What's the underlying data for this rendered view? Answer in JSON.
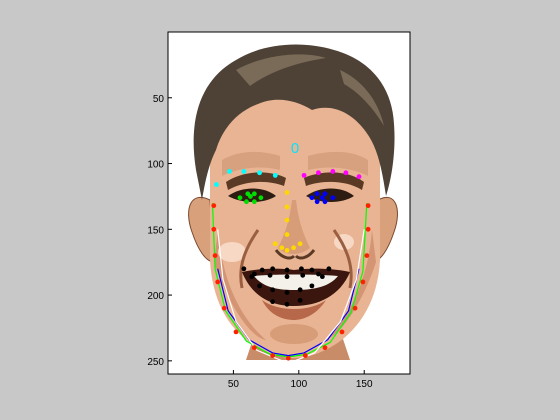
{
  "figure": {
    "background": "#c8c8c8",
    "axes_background": "#ffffff",
    "axis_color": "#000000",
    "ticks": {
      "x": [
        {
          "value": 50,
          "label": "50"
        },
        {
          "value": 100,
          "label": "100"
        },
        {
          "value": 150,
          "label": "150"
        }
      ],
      "y": [
        {
          "value": 50,
          "label": "50"
        },
        {
          "value": 100,
          "label": "100"
        },
        {
          "value": 150,
          "label": "150"
        },
        {
          "value": 200,
          "label": "200"
        },
        {
          "value": 250,
          "label": "250"
        }
      ]
    },
    "xlim": [
      0,
      185
    ],
    "ylim": [
      0,
      260
    ],
    "y_reversed": true
  },
  "annotation": {
    "text": "0",
    "color": "#00e5ff"
  },
  "image": {
    "subject": "cartoon face of a smiling man",
    "skin": "#e9b493",
    "skin_shadow": "#b9754f",
    "hair": "#4e4236",
    "hair_highlight": "#7a6a58"
  },
  "landmarks": {
    "eyebrow_right": {
      "color": "#00ffff",
      "points": [
        [
          37,
          116
        ],
        [
          47,
          106
        ],
        [
          58,
          106
        ],
        [
          70,
          107
        ],
        [
          82,
          109
        ]
      ]
    },
    "eyebrow_left": {
      "color": "#ff00ff",
      "points": [
        [
          104,
          109
        ],
        [
          115,
          107
        ],
        [
          126,
          106
        ],
        [
          136,
          107
        ],
        [
          146,
          110
        ]
      ]
    },
    "eye_right": {
      "color": "#00dd00",
      "points": [
        [
          55,
          126
        ],
        [
          61,
          123
        ],
        [
          66,
          123
        ],
        [
          71,
          126
        ],
        [
          66,
          129
        ],
        [
          60,
          129
        ],
        [
          63,
          125
        ]
      ]
    },
    "eye_left": {
      "color": "#0000ff",
      "points": [
        [
          110,
          126
        ],
        [
          114,
          123
        ],
        [
          120,
          123
        ],
        [
          126,
          126
        ],
        [
          120,
          129
        ],
        [
          114,
          129
        ],
        [
          118,
          126
        ]
      ]
    },
    "nose": {
      "color": "#ffd700",
      "points": [
        [
          91,
          122
        ],
        [
          91,
          133
        ],
        [
          91,
          143
        ],
        [
          91,
          154
        ],
        [
          82,
          161
        ],
        [
          87,
          164
        ],
        [
          91,
          166
        ],
        [
          96,
          164
        ],
        [
          101,
          161
        ]
      ]
    },
    "mouth": {
      "color": "#000000",
      "points": [
        [
          58,
          180
        ],
        [
          64,
          186
        ],
        [
          72,
          181
        ],
        [
          80,
          180
        ],
        [
          91,
          181
        ],
        [
          102,
          180
        ],
        [
          110,
          181
        ],
        [
          118,
          186
        ],
        [
          123,
          180
        ],
        [
          66,
          184
        ],
        [
          78,
          185
        ],
        [
          91,
          186
        ],
        [
          103,
          185
        ],
        [
          115,
          184
        ],
        [
          70,
          193
        ],
        [
          80,
          196
        ],
        [
          91,
          198
        ],
        [
          101,
          196
        ],
        [
          110,
          193
        ],
        [
          80,
          205
        ],
        [
          91,
          207
        ],
        [
          101,
          204
        ]
      ]
    },
    "jaw": {
      "color": "#ff2200",
      "points": [
        [
          35,
          132
        ],
        [
          35,
          150
        ],
        [
          36,
          170
        ],
        [
          38,
          190
        ],
        [
          43,
          210
        ],
        [
          52,
          228
        ],
        [
          66,
          240
        ],
        [
          80,
          246
        ],
        [
          92,
          248
        ],
        [
          105,
          246
        ],
        [
          120,
          240
        ],
        [
          133,
          228
        ],
        [
          143,
          210
        ],
        [
          149,
          190
        ],
        [
          152,
          170
        ],
        [
          153,
          150
        ],
        [
          153,
          132
        ]
      ]
    }
  },
  "contours": [
    {
      "color": "#00ff00",
      "points": [
        [
          34,
          130
        ],
        [
          36,
          180
        ],
        [
          44,
          212
        ],
        [
          60,
          235
        ],
        [
          78,
          245
        ],
        [
          92,
          247
        ],
        [
          106,
          245
        ],
        [
          124,
          236
        ],
        [
          140,
          213
        ],
        [
          149,
          182
        ],
        [
          152,
          130
        ]
      ]
    },
    {
      "color": "#0000ff",
      "points": [
        [
          38,
          180
        ],
        [
          46,
          212
        ],
        [
          62,
          234
        ],
        [
          80,
          244
        ],
        [
          92,
          246
        ],
        [
          104,
          244
        ],
        [
          122,
          234
        ],
        [
          138,
          212
        ],
        [
          146,
          180
        ]
      ]
    },
    {
      "color": "#ffffff",
      "points": [
        [
          38,
          150
        ],
        [
          42,
          188
        ],
        [
          52,
          220
        ],
        [
          68,
          242
        ],
        [
          92,
          252
        ],
        [
          112,
          244
        ],
        [
          132,
          220
        ],
        [
          144,
          188
        ],
        [
          150,
          150
        ]
      ]
    }
  ]
}
